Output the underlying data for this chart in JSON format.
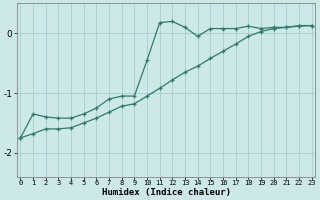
{
  "xlabel": "Humidex (Indice chaleur)",
  "x_values": [
    0,
    1,
    2,
    3,
    4,
    5,
    6,
    7,
    8,
    9,
    10,
    11,
    12,
    13,
    14,
    15,
    16,
    17,
    18,
    19,
    20,
    21,
    22,
    23
  ],
  "line1_y": [
    -1.75,
    -1.35,
    -1.4,
    -1.42,
    -1.42,
    -1.35,
    -1.25,
    -1.1,
    -1.05,
    -1.05,
    -0.45,
    0.18,
    0.2,
    0.1,
    -0.05,
    0.08,
    0.08,
    0.08,
    0.12,
    0.08,
    0.1,
    0.1,
    0.13,
    0.13
  ],
  "line2_y": [
    -1.75,
    -1.68,
    -1.6,
    -1.6,
    -1.58,
    -1.5,
    -1.42,
    -1.32,
    -1.22,
    -1.18,
    -1.05,
    -0.92,
    -0.78,
    -0.65,
    -0.55,
    -0.42,
    -0.3,
    -0.18,
    -0.05,
    0.03,
    0.08,
    0.1,
    0.12,
    0.13
  ],
  "line_color": "#2d7b6c",
  "bg_color": "#cce8e8",
  "grid_color": "#a8cccc",
  "ylim": [
    -2.4,
    0.5
  ],
  "yticks": [
    -2,
    -1,
    0
  ],
  "xlim": [
    -0.3,
    23.3
  ],
  "figsize": [
    3.2,
    2.0
  ],
  "dpi": 100
}
